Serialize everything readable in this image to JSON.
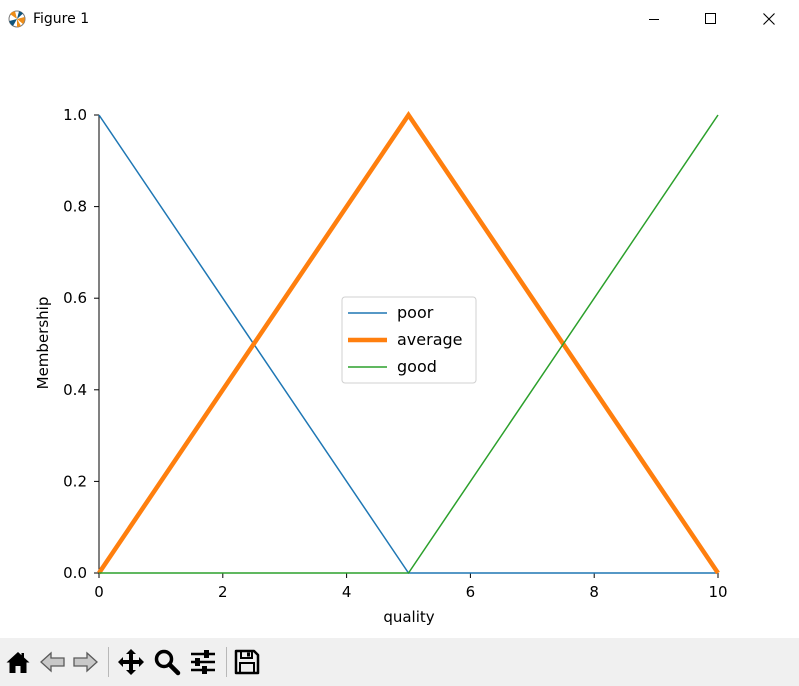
{
  "window": {
    "title": "Figure 1",
    "controls": [
      "minimize",
      "maximize",
      "close"
    ]
  },
  "chart_data": {
    "type": "line",
    "xlabel": "quality",
    "ylabel": "Membership",
    "xlim": [
      0,
      10
    ],
    "ylim": [
      0,
      1
    ],
    "xticks": [
      0,
      2,
      4,
      6,
      8,
      10
    ],
    "xtick_labels": [
      "0",
      "2",
      "4",
      "6",
      "8",
      "10"
    ],
    "yticks": [
      0,
      0.2,
      0.4,
      0.6,
      0.8,
      1.0
    ],
    "ytick_labels": [
      "0.0",
      "0.2",
      "0.4",
      "0.6",
      "0.8",
      "1.0"
    ],
    "grid": false,
    "legend_position": "center",
    "series": [
      {
        "name": "poor",
        "color": "#1f77b4",
        "emphasized": false,
        "x": [
          0,
          5,
          10
        ],
        "y": [
          1,
          0,
          0
        ]
      },
      {
        "name": "average",
        "color": "#ff7f0e",
        "emphasized": true,
        "x": [
          0,
          5,
          10
        ],
        "y": [
          0,
          1,
          0
        ]
      },
      {
        "name": "good",
        "color": "#2ca02c",
        "emphasized": false,
        "x": [
          0,
          5,
          10
        ],
        "y": [
          0,
          0,
          1
        ]
      }
    ]
  },
  "toolbar": {
    "buttons": [
      {
        "name": "home",
        "icon": "home-icon"
      },
      {
        "name": "back",
        "icon": "back-arrow-icon"
      },
      {
        "name": "forward",
        "icon": "forward-arrow-icon"
      },
      {
        "name": "pan",
        "icon": "move-icon"
      },
      {
        "name": "zoom",
        "icon": "magnifier-icon"
      },
      {
        "name": "configure-subplots",
        "icon": "sliders-icon"
      },
      {
        "name": "save",
        "icon": "floppy-disk-icon"
      }
    ]
  }
}
